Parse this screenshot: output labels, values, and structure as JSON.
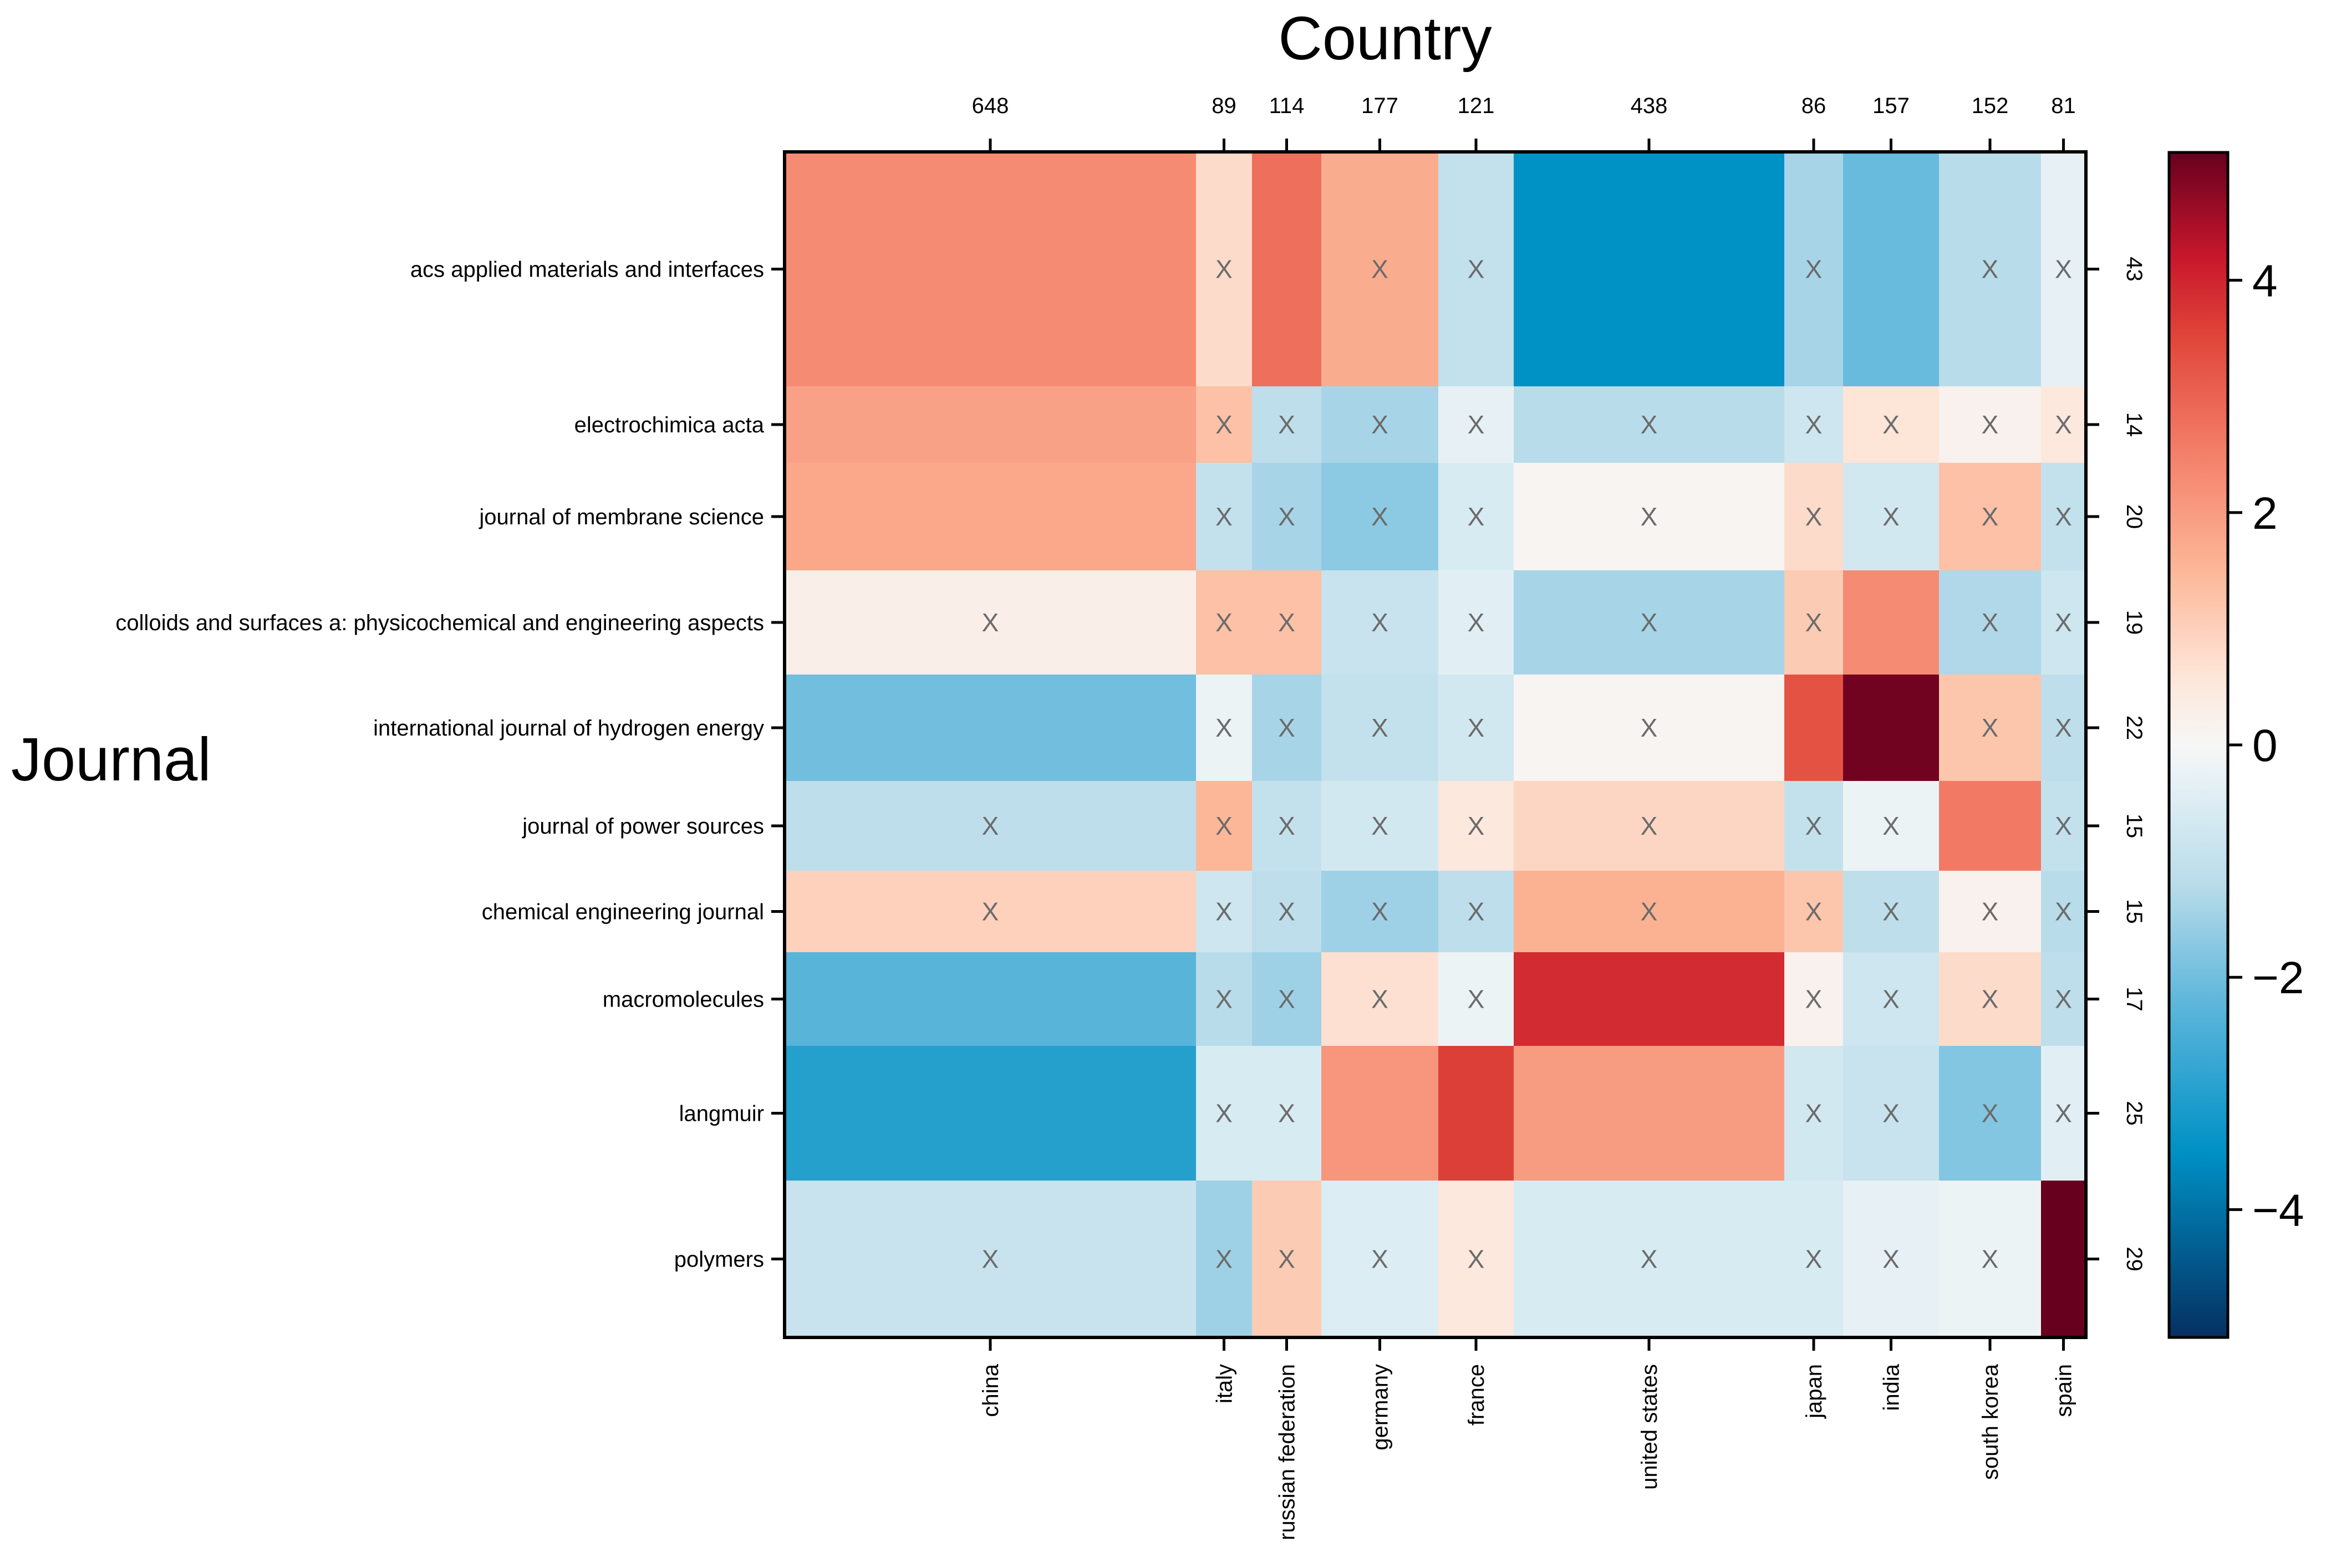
{
  "chart_data": {
    "type": "heatmap",
    "title": "Country",
    "xlabel": "Country",
    "ylabel": "Journal",
    "columns": [
      "china",
      "italy",
      "russian federation",
      "germany",
      "france",
      "united states",
      "japan",
      "india",
      "south korea",
      "spain"
    ],
    "column_totals": [
      648,
      89,
      114,
      177,
      121,
      438,
      86,
      157,
      152,
      81
    ],
    "rows": [
      "acs applied materials and interfaces",
      "electrochimica acta",
      "journal of membrane science",
      "colloids and surfaces a: physicochemical and engineering aspects",
      "international journal of hydrogen energy",
      "journal of power sources",
      "chemical engineering journal",
      "macromolecules",
      "langmuir",
      "polymers"
    ],
    "row_totals": [
      43,
      14,
      20,
      19,
      22,
      15,
      15,
      17,
      25,
      29
    ],
    "values": [
      [
        2.3,
        0.8,
        2.8,
        1.7,
        -1.0,
        -3.5,
        -1.4,
        -2.1,
        -1.2,
        -0.3
      ],
      [
        1.9,
        1.3,
        -1.1,
        -1.4,
        -0.3,
        -1.2,
        -0.8,
        0.6,
        0.2,
        0.5
      ],
      [
        1.8,
        -1.0,
        -1.4,
        -1.7,
        -0.6,
        0.1,
        0.8,
        -0.7,
        1.3,
        -1.0
      ],
      [
        0.3,
        1.3,
        1.3,
        -0.9,
        -0.4,
        -1.4,
        1.1,
        2.3,
        -1.3,
        -0.8
      ],
      [
        -2.0,
        -0.2,
        -1.4,
        -1.0,
        -0.7,
        0.1,
        3.3,
        5.0,
        1.2,
        -1.1
      ],
      [
        -1.1,
        1.5,
        -1.0,
        -0.7,
        0.5,
        0.9,
        -1.0,
        -0.2,
        2.6,
        -1.0
      ],
      [
        1.0,
        -0.8,
        -1.1,
        -1.5,
        -1.1,
        1.6,
        1.2,
        -1.1,
        0.2,
        -1.2
      ],
      [
        -2.3,
        -1.2,
        -1.5,
        0.7,
        -0.2,
        3.9,
        0.2,
        -0.8,
        0.8,
        -1.1
      ],
      [
        -3.0,
        -0.6,
        -0.6,
        2.1,
        3.6,
        2.0,
        -0.7,
        -0.9,
        -1.8,
        -0.4
      ],
      [
        -0.9,
        -1.5,
        1.1,
        -0.5,
        0.5,
        -0.6,
        -0.6,
        -0.3,
        -0.2,
        5.1
      ]
    ],
    "marker": "X",
    "markers": [
      [
        0,
        1,
        0,
        1,
        1,
        0,
        1,
        0,
        1,
        1
      ],
      [
        0,
        1,
        1,
        1,
        1,
        1,
        1,
        1,
        1,
        1
      ],
      [
        0,
        1,
        1,
        1,
        1,
        1,
        1,
        1,
        1,
        1
      ],
      [
        1,
        1,
        1,
        1,
        1,
        1,
        1,
        0,
        1,
        1
      ],
      [
        0,
        1,
        1,
        1,
        1,
        1,
        0,
        0,
        1,
        1
      ],
      [
        1,
        1,
        1,
        1,
        1,
        1,
        1,
        1,
        0,
        1
      ],
      [
        1,
        1,
        1,
        1,
        1,
        1,
        1,
        1,
        1,
        1
      ],
      [
        0,
        1,
        1,
        1,
        1,
        0,
        1,
        1,
        1,
        1
      ],
      [
        0,
        1,
        1,
        0,
        0,
        0,
        1,
        1,
        1,
        1
      ],
      [
        1,
        1,
        1,
        1,
        1,
        1,
        1,
        1,
        1,
        0
      ]
    ],
    "colorbar": {
      "min": -5.1,
      "max": 5.1,
      "ticks": [
        -4,
        -2,
        0,
        2,
        4
      ],
      "tick_labels": [
        "−4",
        "−2",
        "0",
        "2",
        "4"
      ]
    },
    "colors": {
      "low": "#053061",
      "mid_low": "#0091c5",
      "light_blue": "#cfe6f0",
      "mid": "#f7f7f7",
      "light_red": "#fde0d0",
      "mid_high": "#f4806a",
      "high": "#d6202a",
      "max": "#67001f"
    }
  }
}
